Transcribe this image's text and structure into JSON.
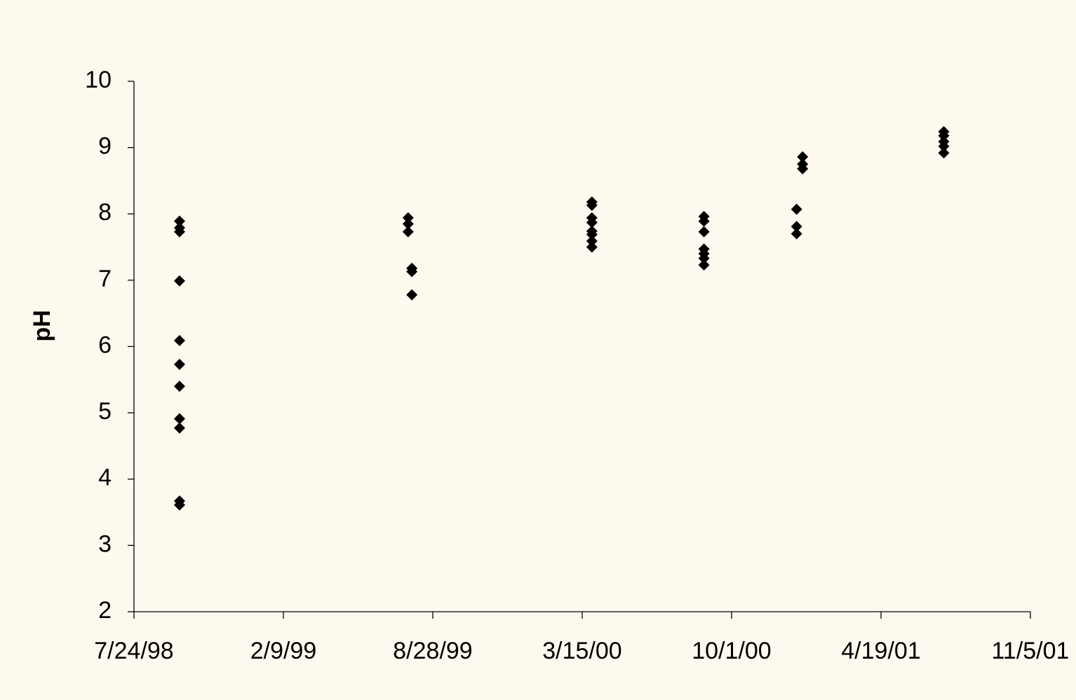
{
  "chart_data": {
    "type": "scatter",
    "y_label": "pH",
    "xlim": [
      "7/24/98",
      "11/5/01"
    ],
    "xticks": [
      "7/24/98",
      "2/9/99",
      "8/28/99",
      "3/15/00",
      "10/1/00",
      "4/19/01",
      "11/5/01"
    ],
    "ylim": [
      2,
      10
    ],
    "yticks": [
      2,
      3,
      4,
      5,
      6,
      7,
      8,
      9,
      10
    ],
    "grid": false,
    "series": [
      {
        "color": "#000000",
        "x": [
          "9/23/98",
          "9/23/98",
          "9/23/98",
          "9/23/98",
          "9/23/98",
          "9/23/98",
          "9/23/98",
          "9/23/98",
          "9/23/98",
          "9/23/98",
          "9/23/98",
          "7/26/99",
          "7/26/99",
          "7/26/99",
          "7/31/99",
          "7/31/99",
          "7/31/99",
          "3/28/00",
          "3/28/00",
          "3/28/00",
          "3/28/00",
          "3/28/00",
          "3/28/00",
          "3/28/00",
          "3/28/00",
          "8/25/00",
          "8/25/00",
          "8/25/00",
          "8/25/00",
          "8/25/00",
          "8/25/00",
          "8/25/00",
          "12/27/00",
          "12/27/00",
          "12/27/00",
          "1/4/01",
          "1/4/01",
          "1/4/01",
          "7/12/01",
          "7/12/01",
          "7/12/01",
          "7/12/01",
          "7/12/01"
        ],
        "values": [
          7.89,
          7.79,
          7.73,
          6.99,
          6.09,
          5.73,
          5.4,
          4.91,
          4.77,
          3.67,
          3.61,
          7.94,
          7.85,
          7.73,
          7.18,
          7.13,
          6.78,
          8.18,
          8.13,
          7.94,
          7.87,
          7.74,
          7.69,
          7.59,
          7.5,
          7.96,
          7.89,
          7.73,
          7.47,
          7.4,
          7.33,
          7.23,
          8.07,
          7.81,
          7.7,
          8.86,
          8.75,
          8.68,
          9.24,
          9.18,
          9.09,
          9.02,
          8.92
        ]
      }
    ]
  }
}
